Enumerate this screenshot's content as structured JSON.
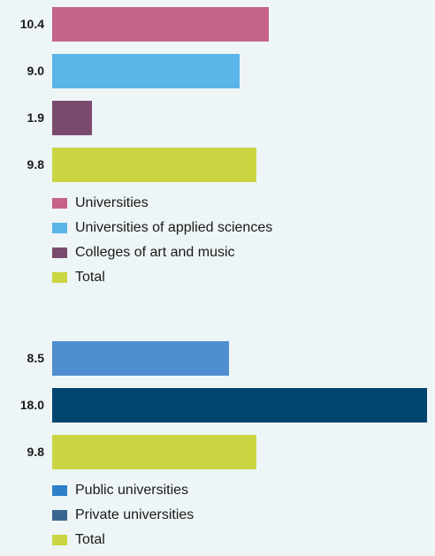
{
  "chart_data": [
    {
      "type": "bar",
      "orientation": "horizontal",
      "categories": [
        "Universities",
        "Universities of applied sciences",
        "Colleges of art and music",
        "Total"
      ],
      "values": [
        10.4,
        9.0,
        1.9,
        9.8
      ],
      "value_labels": [
        "10.4",
        "9.0",
        "1.9",
        "9.8"
      ],
      "colors": [
        "#c5638a",
        "#5bb5e8",
        "#7a4a6e",
        "#c9d642"
      ],
      "xlim": [
        0,
        18.0
      ],
      "grid": false,
      "legend_placement": "bottom"
    },
    {
      "type": "bar",
      "orientation": "horizontal",
      "categories": [
        "Public universities",
        "Private universities",
        "Total"
      ],
      "values": [
        8.5,
        18.0,
        9.8
      ],
      "value_labels": [
        "8.5",
        "18.0",
        "9.8"
      ],
      "colors": [
        "#4f8fd0",
        "#00456f",
        "#c9d642"
      ],
      "legend_colors": [
        "#2e80c8",
        "#3b6591",
        "#c9d642"
      ],
      "xlim": [
        0,
        18.0
      ],
      "grid": false,
      "legend_placement": "bottom"
    }
  ]
}
